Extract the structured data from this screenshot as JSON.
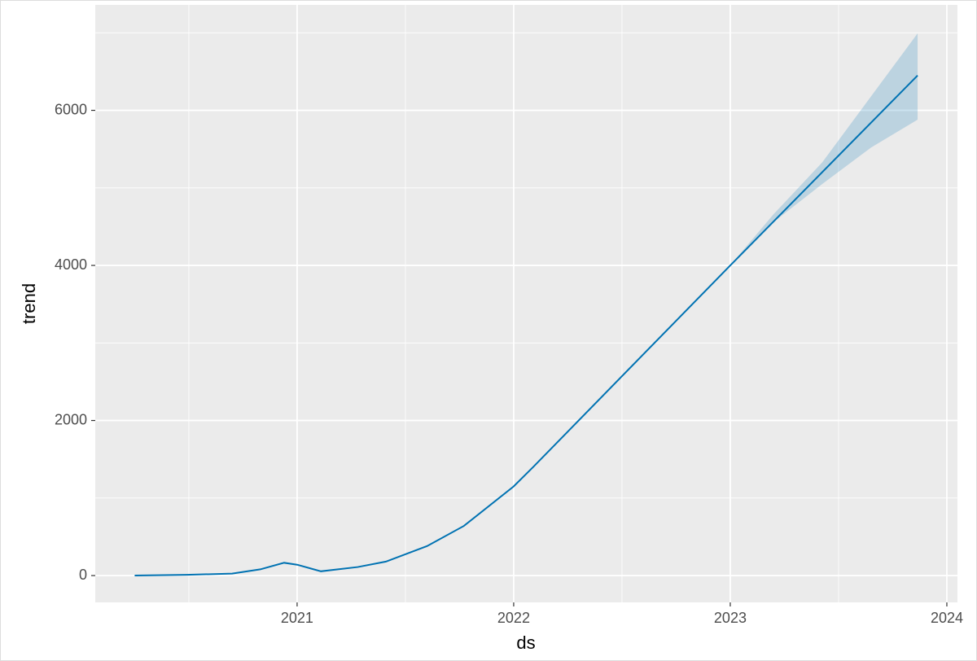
{
  "chart_data": {
    "type": "line",
    "x_label": "ds",
    "y_label": "trend",
    "x": [
      2020.25,
      2020.49,
      2020.7,
      2020.83,
      2020.94,
      2021.0,
      2021.11,
      2021.28,
      2021.41,
      2021.6,
      2021.77,
      2022.0,
      2022.09,
      2023.0,
      2023.865
    ],
    "series": [
      {
        "color": "#0072B2",
        "values": [
          0,
          10,
          25,
          80,
          165,
          140,
          55,
          110,
          180,
          380,
          640,
          1150,
          1400,
          4000,
          6450
        ]
      }
    ],
    "band": {
      "color": "#0072B2",
      "x": [
        2023.0,
        2023.2,
        2023.425,
        2023.65,
        2023.865
      ],
      "lower": [
        4000,
        4560,
        5050,
        5520,
        5880
      ],
      "upper": [
        4000,
        4660,
        5330,
        6180,
        6993
      ]
    },
    "xlim": [
      2020.068,
      2024.049
    ],
    "ylim": [
      -346,
      7360
    ],
    "xticks": [
      2021,
      2022,
      2023,
      2024
    ],
    "yticks": [
      0,
      2000,
      4000,
      6000
    ],
    "minor_xticks": [
      2020.5,
      2021.5,
      2022.5,
      2023.5
    ],
    "minor_yticks": [
      1000,
      3000,
      5000,
      7000
    ],
    "grid": true
  }
}
